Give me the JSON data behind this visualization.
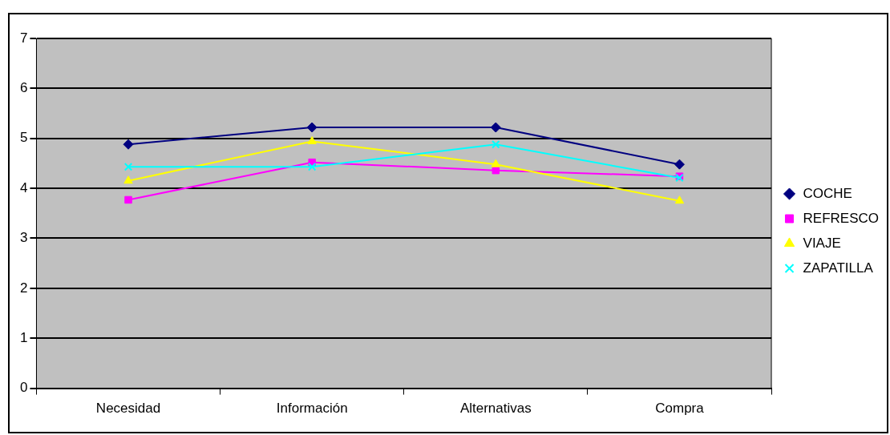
{
  "chart_data": {
    "type": "line",
    "categories": [
      "Necesidad",
      "Información",
      "Alternativas",
      "Compra"
    ],
    "series": [
      {
        "name": "COCHE",
        "color": "#000080",
        "marker": "diamond",
        "values": [
          4.88,
          5.22,
          5.22,
          4.48
        ]
      },
      {
        "name": "REFRESCO",
        "color": "#ff00ff",
        "marker": "square",
        "values": [
          3.77,
          4.52,
          4.36,
          4.24
        ]
      },
      {
        "name": "VIAJE",
        "color": "#ffff00",
        "marker": "triangle",
        "values": [
          4.15,
          4.94,
          4.48,
          3.75
        ]
      },
      {
        "name": "ZAPATILLA",
        "color": "#00ffff",
        "marker": "cross",
        "values": [
          4.43,
          4.43,
          4.88,
          4.21
        ]
      }
    ],
    "ylim": [
      0,
      7
    ],
    "yticks": [
      0,
      1,
      2,
      3,
      4,
      5,
      6,
      7
    ],
    "grid": "y",
    "legend": "right",
    "line_style": "solid"
  }
}
